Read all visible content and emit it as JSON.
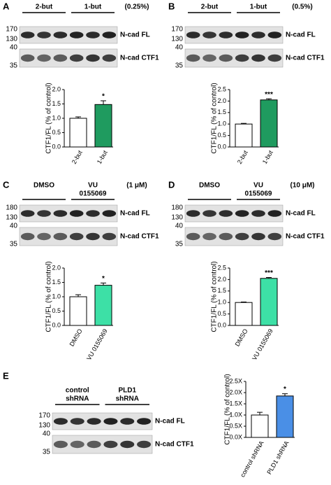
{
  "panels": [
    {
      "letter": "A",
      "groups": [
        [
          "2-but"
        ],
        [
          "1-but"
        ]
      ],
      "condition": "(0.25%)",
      "mw": [
        "170",
        "130",
        "40",
        "35"
      ],
      "bands": [
        "N-cad FL",
        "N-cad CTF1"
      ]
    },
    {
      "letter": "B",
      "groups": [
        [
          "2-but"
        ],
        [
          "1-but"
        ]
      ],
      "condition": "(0.5%)",
      "mw": [
        "170",
        "130",
        "40",
        "35"
      ],
      "bands": [
        "N-cad FL",
        "N-cad CTF1"
      ]
    },
    {
      "letter": "C",
      "groups": [
        [
          "DMSO"
        ],
        [
          "VU",
          "0155069"
        ]
      ],
      "condition": "(1 μM)",
      "mw": [
        "180",
        "130",
        "40",
        "35"
      ],
      "bands": [
        "N-cad FL",
        "N-cad CTF1"
      ]
    },
    {
      "letter": "D",
      "groups": [
        [
          "DMSO"
        ],
        [
          "VU",
          "0155069"
        ]
      ],
      "condition": "(10 μM)",
      "mw": [
        "180",
        "130",
        "40",
        "35"
      ],
      "bands": [
        "N-cad FL",
        "N-cad CTF1"
      ]
    },
    {
      "letter": "E",
      "groups": [
        [
          "control",
          "shRNA"
        ],
        [
          "PLD1",
          "shRNA"
        ]
      ],
      "mw": [
        "170",
        "130",
        "40",
        "35"
      ],
      "bands": [
        "N-cad FL",
        "N-cad CTF1"
      ]
    }
  ],
  "chart_data": [
    {
      "type": "bar",
      "y_label": "CTF1/FL (% of control)",
      "categories": [
        "2-but",
        "1-but"
      ],
      "values": [
        1.0,
        1.48
      ],
      "errors": [
        0.05,
        0.13
      ],
      "colors": [
        "#ffffff",
        "#1f9b5f"
      ],
      "significance": [
        null,
        "*"
      ],
      "ylim": [
        0,
        2.0
      ],
      "yticks": [
        {
          "value": 0,
          "label": "0.0"
        },
        0.5,
        {
          "value": 1,
          "label": "1.0"
        },
        1.5,
        {
          "value": 2,
          "label": "2.0"
        }
      ]
    },
    {
      "type": "bar",
      "y_label": "CTF1/FL (% of control)",
      "categories": [
        "2-but",
        "1-but"
      ],
      "values": [
        1.0,
        2.05
      ],
      "errors": [
        0.03,
        0.05
      ],
      "colors": [
        "#ffffff",
        "#1f9b5f"
      ],
      "significance": [
        null,
        "***"
      ],
      "ylim": [
        0,
        2.5
      ],
      "yticks": [
        {
          "value": 0,
          "label": "0.0"
        },
        0.5,
        {
          "value": 1,
          "label": "1.0"
        },
        1.5,
        {
          "value": 2,
          "label": "2.0"
        },
        2.5
      ]
    },
    {
      "type": "bar",
      "y_label": "CTF1/FL (% of control)",
      "categories": [
        "DMSO",
        "VU 0155069"
      ],
      "values": [
        1.0,
        1.4
      ],
      "errors": [
        0.07,
        0.08
      ],
      "colors": [
        "#ffffff",
        "#3de0a6"
      ],
      "significance": [
        null,
        "*"
      ],
      "ylim": [
        0,
        2.0
      ],
      "yticks": [
        {
          "value": 0,
          "label": "0.0"
        },
        0.5,
        {
          "value": 1,
          "label": "1.0"
        },
        1.5,
        {
          "value": 2,
          "label": "2.0"
        }
      ]
    },
    {
      "type": "bar",
      "y_label": "CTF1/FL (% of control)",
      "categories": [
        "DMSO",
        "VU 0155069"
      ],
      "values": [
        1.0,
        2.05
      ],
      "errors": [
        0.02,
        0.04
      ],
      "colors": [
        "#ffffff",
        "#3de0a6"
      ],
      "significance": [
        null,
        "***"
      ],
      "ylim": [
        0,
        2.5
      ],
      "yticks": [
        {
          "value": 0,
          "label": "0.0"
        },
        0.5,
        {
          "value": 1,
          "label": "1.0"
        },
        1.5,
        {
          "value": 2,
          "label": "2.0"
        },
        2.5
      ]
    },
    {
      "type": "bar",
      "y_label": "CTF1/FL (% of control)",
      "categories": [
        "control shRNA",
        "PLD1 shRNA"
      ],
      "values": [
        1.0,
        1.85
      ],
      "errors": [
        0.12,
        0.1
      ],
      "colors": [
        "#ffffff",
        "#4a8fe6"
      ],
      "significance": [
        null,
        "*"
      ],
      "ylim": [
        0,
        2.5
      ],
      "yticks": [
        {
          "value": 0,
          "label": "0.0X"
        },
        {
          "value": 0.5,
          "label": "0.5X"
        },
        {
          "value": 1,
          "label": "1.0X"
        },
        {
          "value": 1.5,
          "label": "1.5X"
        },
        {
          "value": 2,
          "label": "2.0X"
        },
        {
          "value": 2.5,
          "label": "2.5X"
        }
      ]
    }
  ]
}
